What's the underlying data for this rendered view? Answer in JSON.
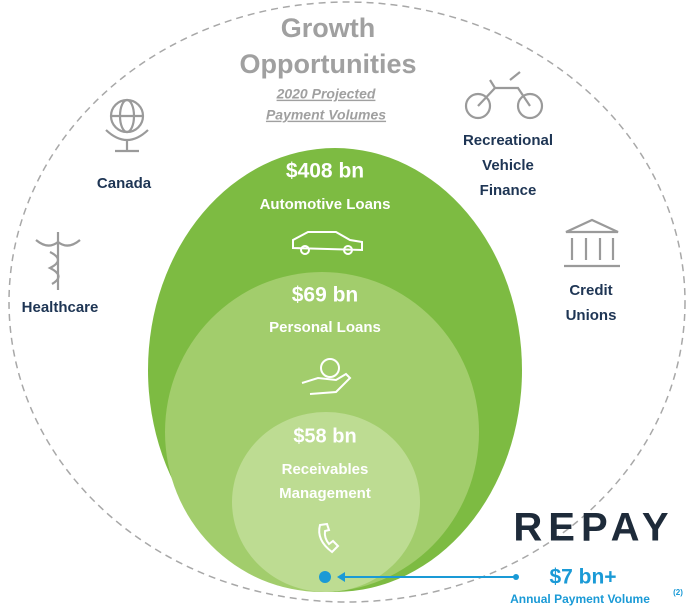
{
  "title": [
    "Growth",
    "Opportunities"
  ],
  "subtitle": [
    "2020 Projected",
    "Payment Volumes"
  ],
  "rings": [
    {
      "value": "$408 bn",
      "label": [
        "Automotive Loans"
      ]
    },
    {
      "value": "$69 bn",
      "label": [
        "Personal Loans"
      ]
    },
    {
      "value": "$58 bn",
      "label": [
        "Receivables",
        "Management"
      ]
    }
  ],
  "markets": [
    {
      "label": [
        "Canada"
      ]
    },
    {
      "label": [
        "Healthcare"
      ]
    },
    {
      "label": [
        "Recreational",
        "Vehicle",
        "Finance"
      ]
    },
    {
      "label": [
        "Credit",
        "Unions"
      ]
    }
  ],
  "brand": {
    "logo": "REPAY",
    "value": "$7 bn+",
    "label": "Annual Payment Volume",
    "note": "(2)"
  }
}
